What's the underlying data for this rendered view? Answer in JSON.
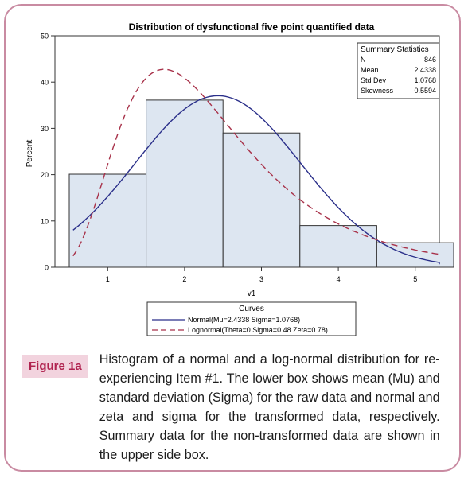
{
  "chart_data": {
    "type": "bar",
    "title": "Distribution of dysfunctional five point quantified data",
    "xlabel": "v1",
    "ylabel": "Percent",
    "x_ticks": [
      "1",
      "2",
      "3",
      "4",
      "5"
    ],
    "y_ticks": [
      "0",
      "10",
      "20",
      "30",
      "40",
      "50"
    ],
    "ylim": [
      0,
      50
    ],
    "xlim": [
      0.5,
      5.5
    ],
    "bins": [
      {
        "start": 0.5,
        "end": 1.5,
        "value": 20.1
      },
      {
        "start": 1.5,
        "end": 2.5,
        "value": 36.1
      },
      {
        "start": 2.5,
        "end": 3.5,
        "value": 29.0
      },
      {
        "start": 3.5,
        "end": 4.5,
        "value": 9.0
      },
      {
        "start": 4.5,
        "end": 5.5,
        "value": 5.3
      }
    ],
    "bar_color": "#dde6f1",
    "bar_edge_color": "#333333",
    "grid": false,
    "curves": [
      {
        "name": "Normal(Mu=2.4338 Sigma=1.0768)",
        "kind": "normal",
        "mu": 2.4338,
        "sigma": 1.0768,
        "color": "#2a2f8a",
        "dash": "solid"
      },
      {
        "name": "Lognormal(Theta=0 Sigma=0.48 Zeta=0.78)",
        "kind": "lognormal",
        "theta": 0,
        "sigma": 0.48,
        "zeta": 0.78,
        "color": "#a8324a",
        "dash": "dashed"
      }
    ],
    "legend": {
      "title": "Curves",
      "placement": "bottom"
    },
    "summary": {
      "title": "Summary Statistics",
      "rows": [
        {
          "label": "N",
          "value": "846"
        },
        {
          "label": "Mean",
          "value": "2.4338"
        },
        {
          "label": "Std Dev",
          "value": "1.0768"
        },
        {
          "label": "Skewness",
          "value": "0.5594"
        }
      ],
      "placement": "top-right"
    }
  },
  "figure": {
    "label": "Figure 1a",
    "caption": "Histogram of a normal and a log-normal distribution for re-experiencing Item #1. The lower box shows mean (Mu) and standard deviation (Sigma) for the raw data and normal and zeta and sigma for the transformed data, respectively. Summary data for the non-transformed data are shown in the upper side box.",
    "accent_color": "#b0234f",
    "label_bg": "#f2d3de",
    "border_color": "#c98ba2"
  }
}
